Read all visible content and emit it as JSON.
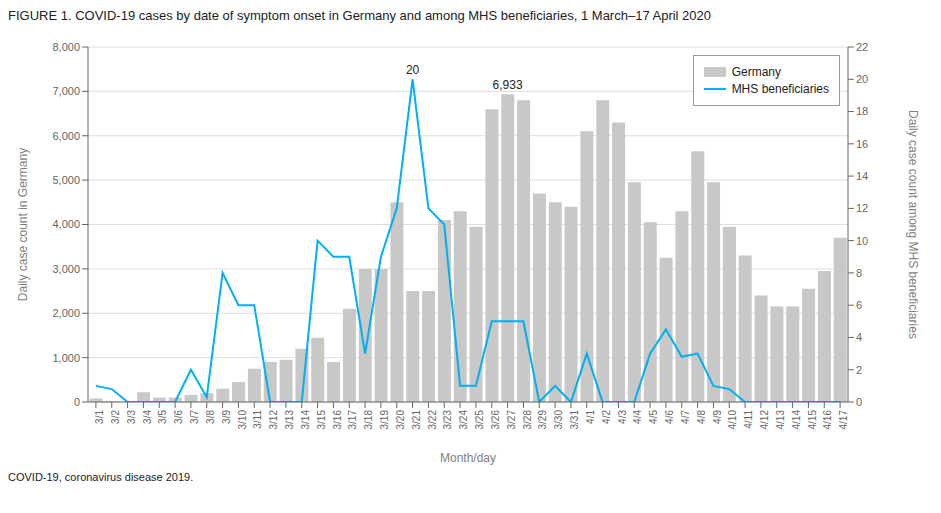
{
  "chart_data": {
    "type": "bar",
    "title": "FIGURE 1. COVID-19 cases by date of symptom onset in Germany and among MHS beneficiaries, 1 March–17 April 2020",
    "caption": "COVID-19, coronavirus disease 2019.",
    "xlabel": "Month/day",
    "ylabel": "Daily case count in Germany",
    "y2label": "Daily case count among MHS beneficiaries",
    "categories": [
      "3/1",
      "3/2",
      "3/3",
      "3/4",
      "3/5",
      "3/6",
      "3/7",
      "3/8",
      "3/9",
      "3/10",
      "3/11",
      "3/12",
      "3/13",
      "3/14",
      "3/15",
      "3/16",
      "3/17",
      "3/18",
      "3/19",
      "3/20",
      "3/21",
      "3/22",
      "3/23",
      "3/24",
      "3/25",
      "3/26",
      "3/27",
      "3/28",
      "3/29",
      "3/30",
      "3/31",
      "4/1",
      "4/2",
      "4/3",
      "4/4",
      "4/5",
      "4/6",
      "4/7",
      "4/8",
      "4/9",
      "4/10",
      "4/11",
      "4/12",
      "4/13",
      "4/14",
      "4/15",
      "4/16",
      "4/17"
    ],
    "series": [
      {
        "name": "Germany",
        "type": "bar",
        "color": "#c8c8c8",
        "values": [
          80,
          20,
          0,
          220,
          100,
          100,
          160,
          200,
          300,
          450,
          750,
          900,
          950,
          1200,
          1450,
          900,
          2100,
          3000,
          3000,
          4500,
          2500,
          2500,
          4100,
          4300,
          3950,
          6600,
          6933,
          6800,
          4700,
          4500,
          4400,
          6100,
          6800,
          6300,
          4950,
          4050,
          3250,
          4300,
          5650,
          4950,
          3950,
          3300,
          2400,
          2150,
          2150,
          2550,
          2950,
          3700
        ]
      },
      {
        "name": "MHS beneficiaries",
        "type": "line",
        "color": "#00b0f0",
        "axis": "y2",
        "values": [
          1,
          0.8,
          0,
          0,
          0,
          0,
          2,
          0.3,
          8,
          6,
          6,
          0,
          0,
          0,
          10,
          9,
          9,
          3,
          9,
          12,
          20,
          12,
          11,
          1,
          1,
          5,
          5,
          5,
          0,
          1,
          0,
          3,
          0,
          0,
          0,
          3,
          4.5,
          2.8,
          3,
          1,
          0.8,
          0,
          0,
          0,
          0,
          0,
          0,
          0
        ]
      }
    ],
    "ylim": [
      0,
      8000
    ],
    "yticks": [
      0,
      {
        "value": 1000,
        "label": "1,000"
      },
      {
        "value": 2000,
        "label": "2,000"
      },
      {
        "value": 3000,
        "label": "3,000"
      },
      {
        "value": 4000,
        "label": "4,000"
      },
      {
        "value": 5000,
        "label": "5,000"
      },
      {
        "value": 6000,
        "label": "6,000"
      },
      {
        "value": 7000,
        "label": "7,000"
      },
      {
        "value": 8000,
        "label": "8,000"
      }
    ],
    "y2lim": [
      0,
      22
    ],
    "y2ticks": [
      0,
      2,
      4,
      6,
      8,
      10,
      12,
      14,
      16,
      18,
      20,
      22
    ],
    "annotations": [
      {
        "text": "20",
        "x": "3/21",
        "y": 20,
        "axis": "y2"
      },
      {
        "text": "6,933",
        "x": "3/27",
        "y": 6933
      }
    ],
    "grid": true,
    "legend": "upper right"
  }
}
